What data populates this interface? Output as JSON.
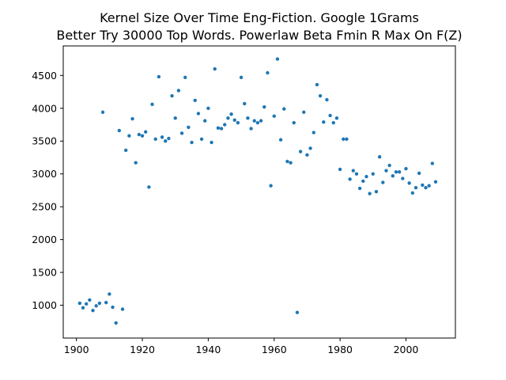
{
  "chart_data": {
    "type": "scatter",
    "title_line1": "Kernel Size Over Time Eng-Fiction. Google 1Grams",
    "title_line2": "Better Try 30000 Top Words. Powerlaw Beta Fmin R Max On F(Z)",
    "xlabel": "",
    "ylabel": "",
    "xlim": [
      1896,
      2015
    ],
    "ylim": [
      500,
      4950
    ],
    "xticks": [
      1900,
      1920,
      1940,
      1960,
      1980,
      2000
    ],
    "yticks": [
      1000,
      1500,
      2000,
      2500,
      3000,
      3500,
      4000,
      4500
    ],
    "grid": false,
    "marker_color": "#1f77b4",
    "x": [
      1901,
      1902,
      1903,
      1904,
      1905,
      1906,
      1907,
      1908,
      1909,
      1910,
      1911,
      1912,
      1913,
      1914,
      1915,
      1916,
      1917,
      1918,
      1919,
      1920,
      1921,
      1922,
      1923,
      1924,
      1925,
      1926,
      1927,
      1928,
      1929,
      1930,
      1931,
      1932,
      1933,
      1934,
      1935,
      1936,
      1937,
      1938,
      1939,
      1940,
      1941,
      1942,
      1943,
      1944,
      1945,
      1946,
      1947,
      1948,
      1949,
      1950,
      1951,
      1952,
      1953,
      1954,
      1955,
      1956,
      1957,
      1958,
      1959,
      1960,
      1961,
      1962,
      1963,
      1964,
      1965,
      1966,
      1967,
      1968,
      1969,
      1970,
      1971,
      1972,
      1973,
      1974,
      1975,
      1976,
      1977,
      1978,
      1979,
      1980,
      1981,
      1982,
      1983,
      1984,
      1985,
      1986,
      1987,
      1988,
      1989,
      1990,
      1991,
      1992,
      1993,
      1994,
      1995,
      1996,
      1997,
      1998,
      1999,
      2000,
      2001,
      2002,
      2003,
      2004,
      2005,
      2006,
      2007,
      2008,
      2009
    ],
    "y": [
      1030,
      960,
      1020,
      1080,
      920,
      990,
      1030,
      3940,
      1040,
      1170,
      970,
      730,
      3660,
      940,
      3360,
      3580,
      3840,
      3170,
      3600,
      3580,
      3640,
      2800,
      4060,
      3530,
      4480,
      3560,
      3500,
      3540,
      4190,
      3850,
      4270,
      3620,
      4470,
      3710,
      3480,
      4120,
      3920,
      3530,
      3810,
      4000,
      3480,
      4600,
      3700,
      3690,
      3750,
      3850,
      3910,
      3820,
      3780,
      4470,
      4070,
      3850,
      3690,
      3810,
      3780,
      3810,
      4020,
      4540,
      2820,
      3880,
      4750,
      3520,
      3990,
      3190,
      3170,
      3780,
      890,
      3340,
      3940,
      3290,
      3390,
      3630,
      4360,
      4190,
      3790,
      4130,
      3890,
      3780,
      3850,
      3070,
      3530,
      3530,
      2920,
      3050,
      3000,
      2780,
      2890,
      2960,
      2700,
      3000,
      2730,
      3260,
      2870,
      3050,
      3130,
      2970,
      3030,
      3030,
      2930,
      3080,
      2860,
      2710,
      2790,
      3010,
      2830,
      2790,
      2820,
      3160,
      2880
    ]
  }
}
